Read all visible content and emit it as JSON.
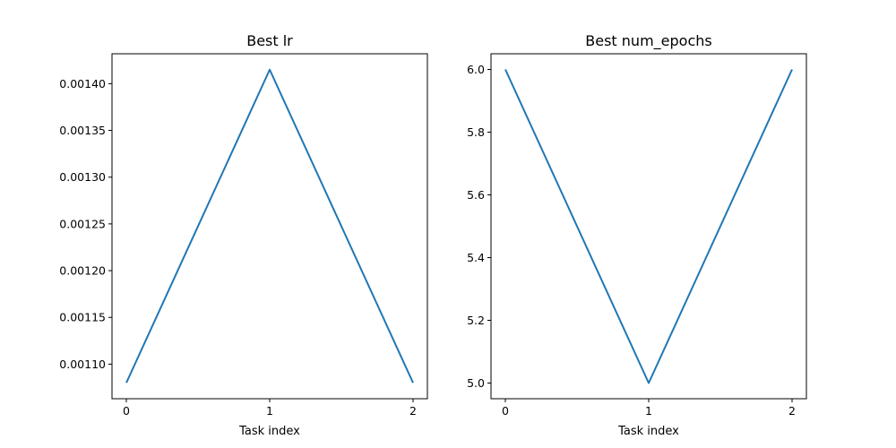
{
  "chart_data": [
    {
      "type": "line",
      "title": "Best lr",
      "xlabel": "Task index",
      "ylabel": "",
      "x": [
        0,
        1,
        2
      ],
      "series": [
        {
          "values": [
            0.00108,
            0.001415,
            0.00108
          ]
        }
      ],
      "xlim": [
        -0.1,
        2.1
      ],
      "ylim": [
        0.001063,
        0.001432
      ],
      "xticks": [
        0,
        1,
        2
      ],
      "xtick_labels": [
        "0",
        "1",
        "2"
      ],
      "yticks": [
        0.0011,
        0.00115,
        0.0012,
        0.00125,
        0.0013,
        0.00135,
        0.0014
      ],
      "ytick_labels": [
        "0.00110",
        "0.00115",
        "0.00120",
        "0.00125",
        "0.00130",
        "0.00135",
        "0.00140"
      ],
      "grid": false,
      "line_color": "#1f77b4"
    },
    {
      "type": "line",
      "title": "Best num_epochs",
      "xlabel": "Task index",
      "ylabel": "",
      "x": [
        0,
        1,
        2
      ],
      "series": [
        {
          "values": [
            6.0,
            5.0,
            6.0
          ]
        }
      ],
      "xlim": [
        -0.1,
        2.1
      ],
      "ylim": [
        4.95,
        6.05
      ],
      "xticks": [
        0,
        1,
        2
      ],
      "xtick_labels": [
        "0",
        "1",
        "2"
      ],
      "yticks": [
        5.0,
        5.2,
        5.4,
        5.6,
        5.8,
        6.0
      ],
      "ytick_labels": [
        "5.0",
        "5.2",
        "5.4",
        "5.6",
        "5.8",
        "6.0"
      ],
      "grid": false,
      "line_color": "#1f77b4"
    }
  ]
}
